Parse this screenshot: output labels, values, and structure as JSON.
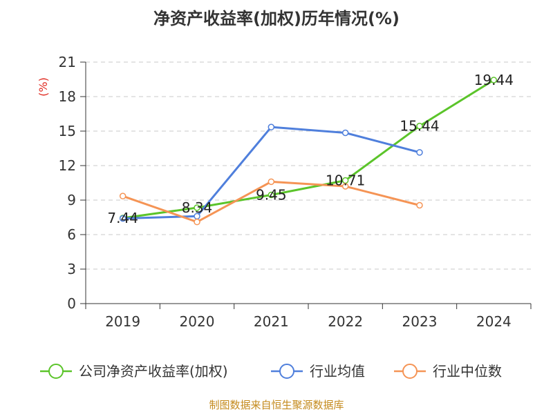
{
  "chart_data": {
    "type": "line",
    "title": "净资产收益率(加权)历年情况(%)",
    "ylabel": "(%)",
    "categories": [
      "2019",
      "2020",
      "2021",
      "2022",
      "2023",
      "2024"
    ],
    "ylim": [
      0,
      21
    ],
    "yticks": [
      0,
      3,
      6,
      9,
      12,
      15,
      18,
      21
    ],
    "ytick_labels": [
      "0",
      "3",
      "6",
      "9",
      "12",
      "15",
      "18",
      "21"
    ],
    "grid": true,
    "series": [
      {
        "name": "公司净资产收益率(加权)",
        "color": "#5bc42a",
        "values": [
          7.44,
          8.34,
          9.45,
          10.71,
          15.44,
          19.44
        ],
        "labels": [
          "7.44",
          "8.34",
          "9.45",
          "10.71",
          "15.44",
          "19.44"
        ]
      },
      {
        "name": "行业均值",
        "color": "#4f7fdc",
        "values": [
          7.4,
          7.6,
          15.35,
          14.85,
          13.15,
          null
        ],
        "labels": []
      },
      {
        "name": "行业中位数",
        "color": "#f59455",
        "values": [
          9.35,
          7.1,
          10.6,
          10.2,
          8.55,
          null
        ],
        "labels": []
      }
    ],
    "legend_position": "bottom"
  },
  "source_text": "制图数据来自恒生聚源数据库"
}
